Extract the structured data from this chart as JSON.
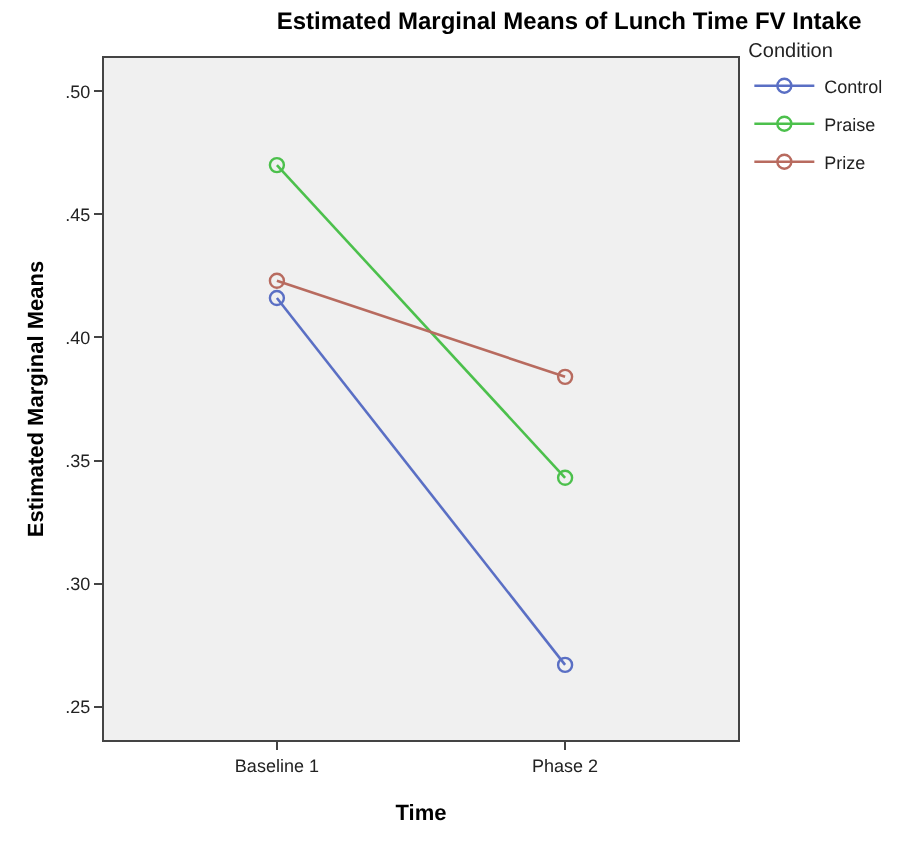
{
  "chart_data": {
    "type": "line",
    "title": "Estimated Marginal Means of Lunch Time FV Intake",
    "xlabel": "Time",
    "ylabel": "Estimated Marginal Means",
    "legend_title": "Condition",
    "categories": [
      "Baseline 1",
      "Phase 2"
    ],
    "series": [
      {
        "name": "Control",
        "color": "#5a6fc4",
        "values": [
          0.416,
          0.267
        ]
      },
      {
        "name": "Praise",
        "color": "#4cc04c",
        "values": [
          0.47,
          0.343
        ]
      },
      {
        "name": "Prize",
        "color": "#b86b5f",
        "values": [
          0.423,
          0.384
        ]
      }
    ],
    "ylim": [
      0.2365,
      0.5135
    ],
    "yticks": [
      {
        "value": 0.25,
        "label": ".25"
      },
      {
        "value": 0.3,
        "label": ".30"
      },
      {
        "value": 0.35,
        "label": ".35"
      },
      {
        "value": 0.4,
        "label": ".40"
      },
      {
        "value": 0.45,
        "label": ".45"
      },
      {
        "value": 0.5,
        "label": ".50"
      }
    ],
    "grid": false,
    "legend": "top right",
    "marker": "circle",
    "line_style": "solid"
  }
}
